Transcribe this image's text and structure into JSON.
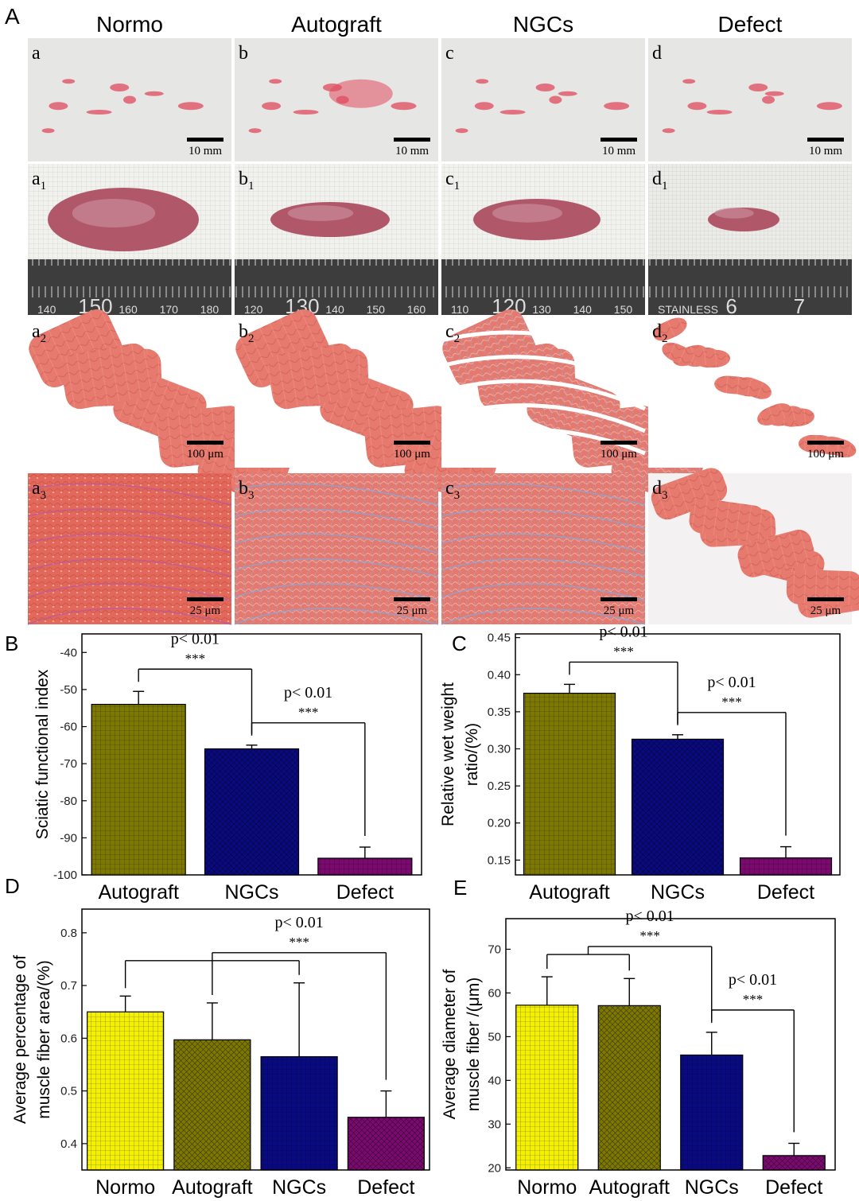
{
  "figure_label_A": "A",
  "columns": [
    "Normo",
    "Autograft",
    "NGCs",
    "Defect"
  ],
  "row_labels": [
    [
      "a",
      "b",
      "c",
      "d"
    ],
    [
      "a1",
      "b1",
      "c1",
      "d1"
    ],
    [
      "a2",
      "b2",
      "c2",
      "d2"
    ],
    [
      "a3",
      "b3",
      "c3",
      "d3"
    ]
  ],
  "scale_bars": [
    "10 mm",
    "",
    "100 μm",
    "25 μm"
  ],
  "ruler_numbers": [
    [
      "140",
      "150",
      "160",
      "170",
      "180"
    ],
    [
      "120",
      "130",
      "140",
      "150",
      "160"
    ],
    [
      "110",
      "120",
      "130",
      "140",
      "150"
    ],
    [
      "STAINLESS",
      "6",
      "7"
    ]
  ],
  "colors": {
    "normo": "#f5f000",
    "autograft": "#7d7800",
    "ngcs": "#0a0a80",
    "defect": "#7a0a6e",
    "tissue_pink": "#e07870",
    "collagen_blue": "#7aa0d0"
  },
  "chart_data": [
    {
      "panel": "B",
      "type": "bar",
      "categories": [
        "Autograft",
        "NGCs",
        "Defect"
      ],
      "values": [
        -54,
        -66,
        -95.5
      ],
      "errors": [
        3.5,
        1,
        3
      ],
      "ylabel": "Sciatic functional index",
      "ylim": [
        -100,
        -35
      ],
      "yticks": [
        "-100",
        "-90",
        "-80",
        "-70",
        "-60",
        "-50",
        "-40"
      ],
      "annotations": [
        {
          "text": "p< 0.01",
          "stars": "***",
          "from": 0,
          "to": 1
        },
        {
          "text": "p< 0.01",
          "stars": "***",
          "from": 1,
          "to": 2
        }
      ]
    },
    {
      "panel": "C",
      "type": "bar",
      "categories": [
        "Autograft",
        "NGCs",
        "Defect"
      ],
      "values": [
        0.375,
        0.313,
        0.153
      ],
      "errors": [
        0.012,
        0.006,
        0.015
      ],
      "ylabel": "Relative wet weight ratio/(%)",
      "ylim": [
        0.13,
        0.455
      ],
      "yticks": [
        "0.15",
        "0.20",
        "0.25",
        "0.30",
        "0.35",
        "0.40",
        "0.45"
      ],
      "annotations": [
        {
          "text": "p< 0.01",
          "stars": "***",
          "from": 0,
          "to": 1
        },
        {
          "text": "p< 0.01",
          "stars": "***",
          "from": 1,
          "to": 2
        }
      ]
    },
    {
      "panel": "D",
      "type": "bar",
      "categories": [
        "Normo",
        "Autograft",
        "NGCs",
        "Defect"
      ],
      "values": [
        0.65,
        0.597,
        0.565,
        0.45
      ],
      "errors": [
        0.03,
        0.07,
        0.14,
        0.05
      ],
      "ylabel": "Average percentage of muscle fiber area/(%)",
      "ylim": [
        0.35,
        0.845
      ],
      "yticks": [
        "0.4",
        "0.5",
        "0.6",
        "0.7",
        "0.8"
      ],
      "annotations": [
        {
          "text": "p< 0.01",
          "stars": "***",
          "from": [
            0,
            1,
            2
          ],
          "to": 3
        }
      ]
    },
    {
      "panel": "E",
      "type": "bar",
      "categories": [
        "Normo",
        "Autograft",
        "NGCs",
        "Defect"
      ],
      "values": [
        57.2,
        57.1,
        45.8,
        22.8
      ],
      "errors": [
        6.5,
        6.2,
        5.2,
        2.8
      ],
      "ylabel": "Average diameter of muscle fiber /(μm)",
      "ylim": [
        19.5,
        77
      ],
      "yticks": [
        "20",
        "30",
        "40",
        "50",
        "60",
        "70"
      ],
      "annotations": [
        {
          "text": "p< 0.01",
          "stars": "***",
          "from": [
            0,
            1
          ],
          "to": 2
        },
        {
          "text": "p< 0.01",
          "stars": "***",
          "from": 2,
          "to": 3
        }
      ]
    }
  ],
  "panel_labels": [
    "B",
    "C",
    "D",
    "E"
  ]
}
